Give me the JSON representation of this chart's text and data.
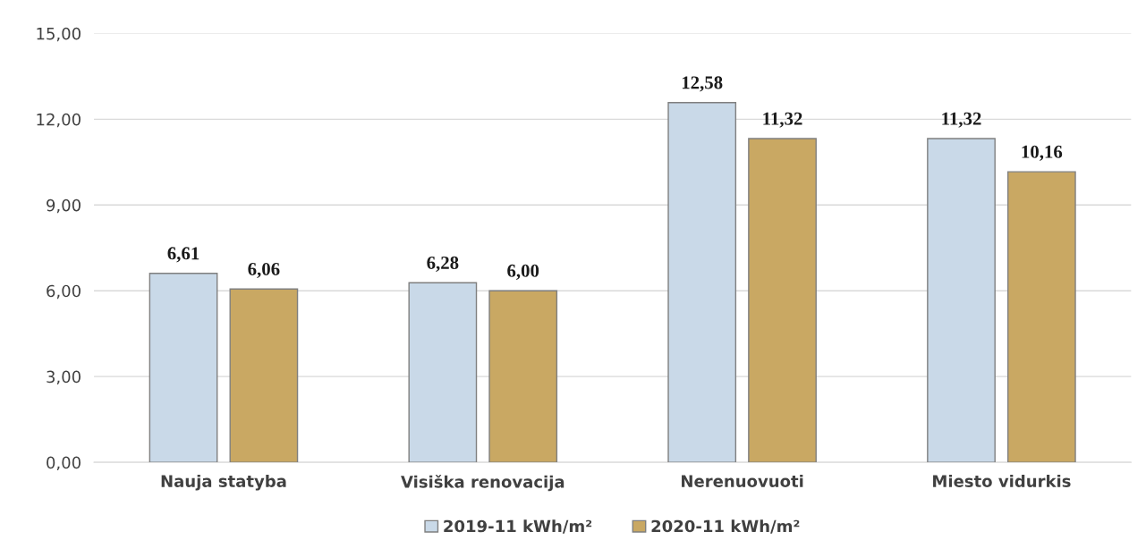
{
  "chart_data": {
    "type": "bar",
    "categories": [
      "Nauja statyba",
      "Visiška renovacija",
      "Nerenuovuoti",
      "Miesto vidurkis"
    ],
    "series": [
      {
        "name": "2019-11 kWh/m²",
        "color": "#c9d9e8",
        "values": [
          6.61,
          6.28,
          12.58,
          11.32
        ],
        "value_labels": [
          "6,61",
          "6,28",
          "12,58",
          "11,32"
        ]
      },
      {
        "name": "2020-11 kWh/m²",
        "color": "#c9a863",
        "values": [
          6.06,
          6.0,
          11.32,
          10.16
        ],
        "value_labels": [
          "6,06",
          "6,00",
          "11,32",
          "10,16"
        ]
      }
    ],
    "ylim": [
      0,
      15
    ],
    "yticks": [
      {
        "value": 0,
        "label": "0,00"
      },
      {
        "value": 3,
        "label": "3,00"
      },
      {
        "value": 6,
        "label": "6,00"
      },
      {
        "value": 9,
        "label": "9,00"
      },
      {
        "value": 12,
        "label": "12,00"
      },
      {
        "value": 15,
        "label": "15,00"
      }
    ],
    "grid": "y",
    "legend": "bottom"
  }
}
